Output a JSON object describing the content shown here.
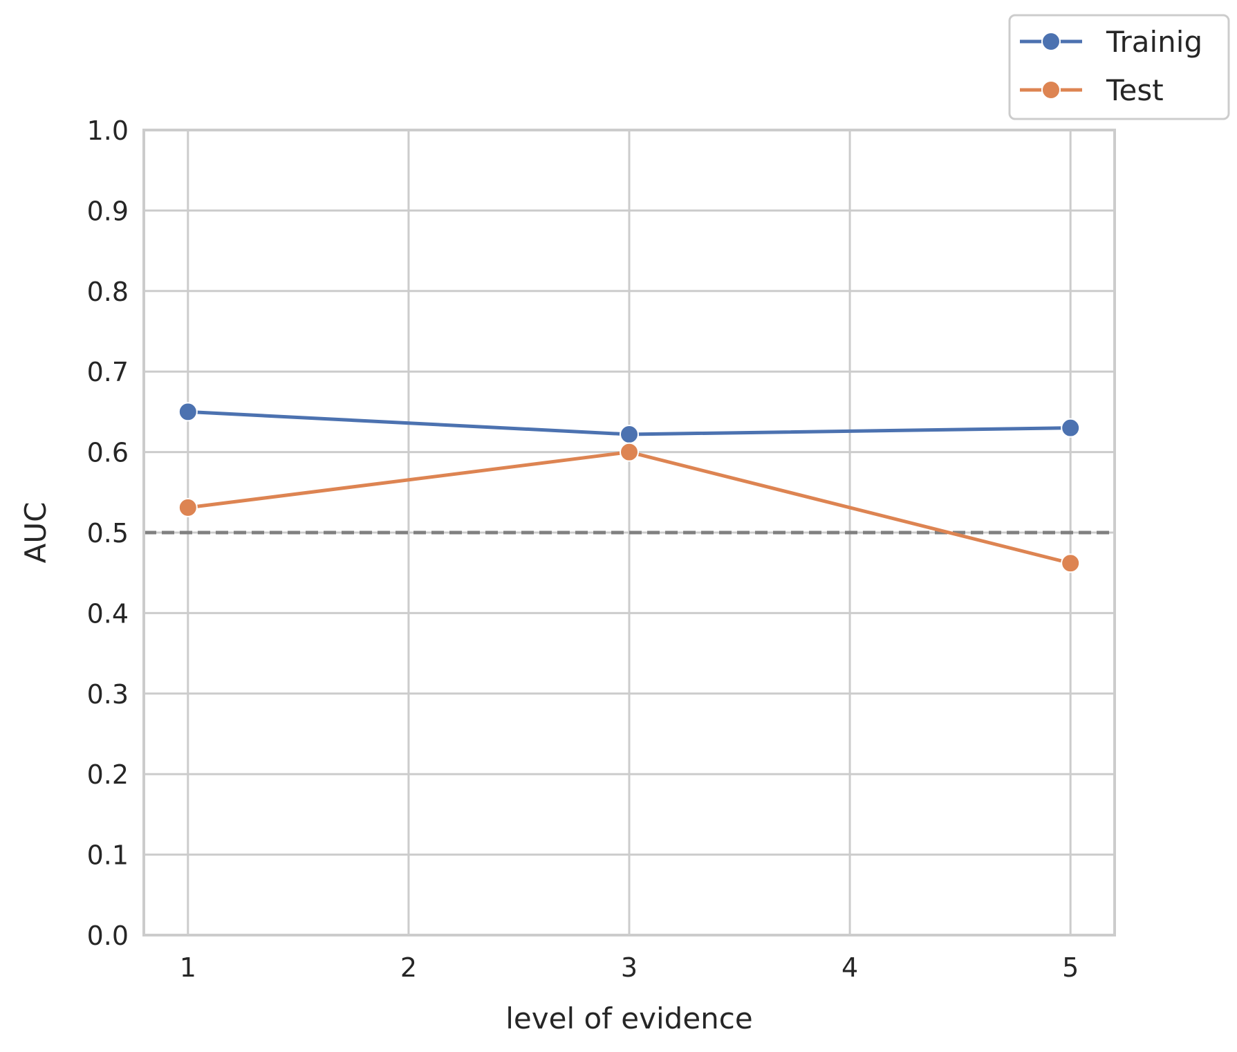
{
  "chart_data": {
    "type": "line",
    "x": [
      1,
      3,
      5
    ],
    "series": [
      {
        "name": "Trainig",
        "values": [
          0.65,
          0.622,
          0.63
        ],
        "color": "#4c72b0"
      },
      {
        "name": "Test",
        "values": [
          0.531,
          0.6,
          0.462
        ],
        "color": "#dd8452"
      }
    ],
    "xticks": [
      1,
      2,
      3,
      4,
      5
    ],
    "yticks": [
      0.0,
      0.1,
      0.2,
      0.3,
      0.4,
      0.5,
      0.6,
      0.7,
      0.8,
      0.9,
      1.0
    ],
    "xlim": [
      0.8,
      5.2
    ],
    "ylim": [
      0.0,
      1.0
    ],
    "xlabel": "level of evidence",
    "ylabel": "AUC",
    "reference_line": {
      "y": 0.5,
      "style": "dashed",
      "color": "#808080"
    },
    "grid": true,
    "legend_position": "top-right-outside"
  }
}
